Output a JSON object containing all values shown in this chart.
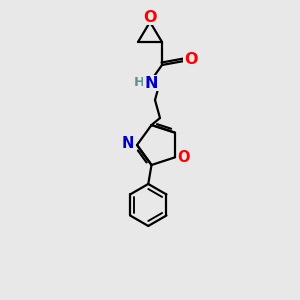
{
  "bg_color": "#e8e8e8",
  "bond_color": "#000000",
  "N_color": "#0000cd",
  "O_color": "#ff0000",
  "H_color": "#5f9090",
  "line_width": 1.6,
  "font_size": 10.5,
  "figsize": [
    3.0,
    3.0
  ],
  "dpi": 100,
  "xlim": [
    0,
    300
  ],
  "ylim": [
    0,
    300
  ]
}
